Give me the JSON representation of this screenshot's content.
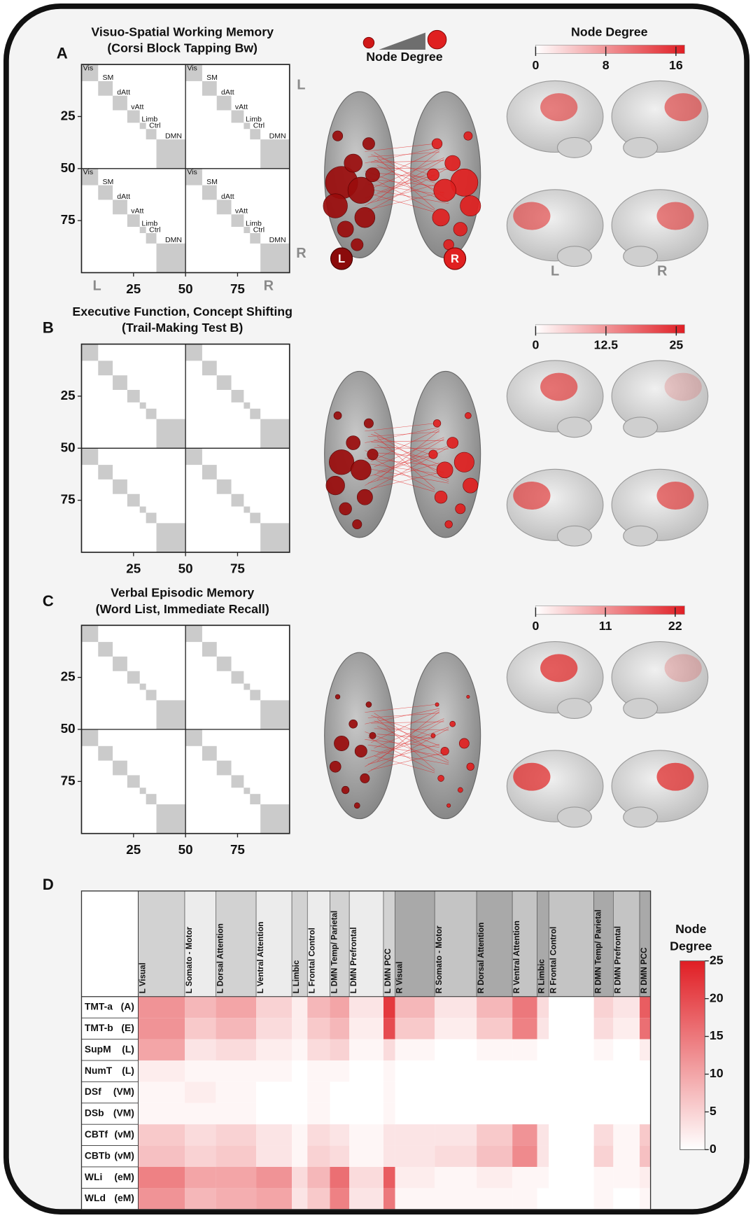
{
  "panels": [
    {
      "label": "A",
      "title": [
        "Visuo-Spatial Working Memory",
        "(Corsi Block Tapping Bw)"
      ],
      "matrix": {
        "xlim": [
          0,
          100
        ],
        "ylim": [
          0,
          100
        ],
        "xticks": [
          25,
          50,
          75
        ],
        "yticks": [
          25,
          50,
          75
        ],
        "networks": [
          "Vis",
          "SM",
          "dAtt",
          "vAtt",
          "Limb",
          "Ctrl",
          "DMN"
        ],
        "hemispheres": [
          "L",
          "R"
        ]
      },
      "node_legend": "Node Degree",
      "brain_labels": [
        "L",
        "R"
      ],
      "colorbar": {
        "title": "Node Degree",
        "lim": [
          0,
          17
        ],
        "ticks": [
          0,
          8,
          16
        ]
      },
      "view_labels": [
        "L",
        "R"
      ]
    },
    {
      "label": "B",
      "title": [
        "Executive Function, Concept Shifting",
        "(Trail-Making Test B)"
      ],
      "matrix": {
        "xlim": [
          0,
          100
        ],
        "ylim": [
          0,
          100
        ],
        "xticks": [
          25,
          50,
          75
        ],
        "yticks": [
          25,
          50,
          75
        ]
      },
      "colorbar": {
        "lim": [
          0,
          26.5
        ],
        "ticks": [
          0,
          12.5,
          25
        ]
      }
    },
    {
      "label": "C",
      "title": [
        "Verbal Episodic Memory",
        "(Word List, Immediate Recall)"
      ],
      "matrix": {
        "xlim": [
          0,
          100
        ],
        "ylim": [
          0,
          100
        ],
        "xticks": [
          25,
          50,
          75
        ],
        "yticks": [
          25,
          50,
          75
        ]
      },
      "colorbar": {
        "lim": [
          0,
          23.5
        ],
        "ticks": [
          0,
          11,
          22
        ]
      }
    }
  ],
  "panel_d": {
    "label": "D",
    "columns": [
      "L Visual",
      "L Somato - Motor",
      "L Dorsal Attention",
      "L Ventral Attention",
      "L Limbic",
      "L Frontal Control",
      "L DMN Temp/ Parietal",
      "L DMN Prefrontal",
      "L DMN PCC",
      "R Visual",
      "R Somato - Motor",
      "R Dorsal Attention",
      "R Ventral Attention",
      "R Limbic",
      "R Frontal Control",
      "R DMN Temp/ Parietal",
      "R DMN Prefrontal",
      "R DMN PCC"
    ],
    "rows": [
      {
        "name": "TMT-a",
        "domain": "(A)",
        "values": [
          12,
          8,
          10,
          5,
          2,
          8,
          10,
          3,
          22,
          8,
          3,
          8,
          15,
          4,
          0,
          5,
          3,
          18
        ]
      },
      {
        "name": "TMT-b",
        "domain": "(E)",
        "values": [
          12,
          6,
          8,
          4,
          2,
          6,
          8,
          2,
          20,
          6,
          2,
          6,
          14,
          3,
          0,
          4,
          2,
          16
        ]
      },
      {
        "name": "SupM",
        "domain": "(L)",
        "values": [
          10,
          3,
          4,
          2,
          1,
          4,
          5,
          1,
          4,
          1,
          0,
          1,
          1,
          0,
          0,
          1,
          0,
          2
        ]
      },
      {
        "name": "NumT",
        "domain": "(L)",
        "values": [
          2,
          1,
          1,
          1,
          0,
          1,
          1,
          0,
          1,
          0,
          0,
          0,
          0,
          0,
          0,
          0,
          0,
          0
        ]
      },
      {
        "name": "DSf",
        "domain": "(VM)",
        "values": [
          1,
          2,
          1,
          0,
          0,
          1,
          0,
          0,
          1,
          0,
          0,
          0,
          0,
          0,
          0,
          0,
          0,
          0
        ]
      },
      {
        "name": "DSb",
        "domain": "(VM)",
        "values": [
          1,
          1,
          1,
          0,
          0,
          1,
          0,
          0,
          1,
          0,
          0,
          0,
          0,
          0,
          0,
          0,
          0,
          0
        ]
      },
      {
        "name": "CBTf",
        "domain": "(vM)",
        "values": [
          6,
          4,
          5,
          3,
          1,
          4,
          3,
          1,
          3,
          3,
          3,
          6,
          12,
          3,
          0,
          4,
          1,
          6
        ]
      },
      {
        "name": "CBTb",
        "domain": "(vM)",
        "values": [
          7,
          5,
          6,
          3,
          1,
          5,
          4,
          1,
          3,
          3,
          4,
          7,
          13,
          3,
          0,
          5,
          1,
          7
        ]
      },
      {
        "name": "WLi",
        "domain": "(eM)",
        "values": [
          14,
          10,
          10,
          12,
          4,
          8,
          16,
          4,
          18,
          2,
          1,
          2,
          1,
          1,
          0,
          1,
          1,
          2
        ]
      },
      {
        "name": "WLd",
        "domain": "(eM)",
        "values": [
          12,
          8,
          9,
          10,
          3,
          6,
          14,
          3,
          15,
          1,
          1,
          1,
          1,
          0,
          0,
          1,
          0,
          1
        ]
      }
    ],
    "colorbar": {
      "title": [
        "Node",
        "Degree"
      ],
      "lim": [
        0,
        25
      ],
      "ticks": [
        0,
        5,
        10,
        15,
        20,
        25
      ]
    }
  }
}
